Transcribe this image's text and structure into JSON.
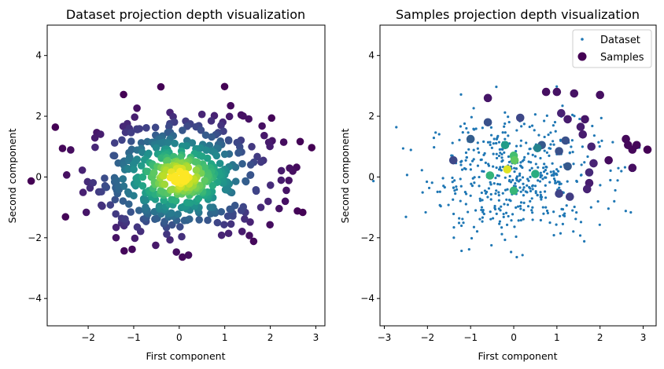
{
  "chart_data": [
    {
      "type": "scatter",
      "title": "Dataset projection depth visualization",
      "xlabel": "First component",
      "ylabel": "Second component",
      "xlim": [
        -2.9,
        3.2
      ],
      "ylim": [
        -4.9,
        5.0
      ],
      "xticks": [
        -2,
        -1,
        0,
        1,
        2,
        3
      ],
      "yticks": [
        -4,
        -2,
        0,
        2,
        4
      ],
      "colormap": "viridis",
      "point_count": 500,
      "distribution": "bivariate standard normal",
      "color_encoding": "projection depth (purple = low, yellow = high)",
      "grid": false,
      "legend": null
    },
    {
      "type": "scatter",
      "title": "Samples projection depth visualization",
      "xlabel": "First component",
      "ylabel": "Second component",
      "xlim": [
        -3.1,
        3.3
      ],
      "ylim": [
        -4.9,
        5.0
      ],
      "xticks": [
        -3,
        -2,
        -1,
        0,
        1,
        2,
        3
      ],
      "yticks": [
        -4,
        -2,
        0,
        2,
        4
      ],
      "grid": false,
      "legend": "top-right",
      "series": [
        {
          "name": "Dataset",
          "marker": "small dot",
          "color": "#1f77b4",
          "point_count": 500
        },
        {
          "name": "Samples",
          "marker": "large circle",
          "colormap": "viridis",
          "points": [
            {
              "x": -0.15,
              "y": 0.25,
              "depth": 0.95
            },
            {
              "x": 0.02,
              "y": 0.55,
              "depth": 0.75
            },
            {
              "x": 0.0,
              "y": 0.7,
              "depth": 0.7
            },
            {
              "x": -0.55,
              "y": 0.05,
              "depth": 0.65
            },
            {
              "x": 0.5,
              "y": 0.1,
              "depth": 0.62
            },
            {
              "x": 0.0,
              "y": -0.45,
              "depth": 0.66
            },
            {
              "x": -0.2,
              "y": 1.05,
              "depth": 0.55
            },
            {
              "x": 0.55,
              "y": 0.95,
              "depth": 0.45
            },
            {
              "x": -1.0,
              "y": 1.25,
              "depth": 0.3
            },
            {
              "x": -1.4,
              "y": 0.55,
              "depth": 0.22
            },
            {
              "x": -0.6,
              "y": 1.8,
              "depth": 0.25
            },
            {
              "x": 0.15,
              "y": 1.95,
              "depth": 0.22
            },
            {
              "x": 0.65,
              "y": 1.05,
              "depth": 0.28
            },
            {
              "x": 1.2,
              "y": 1.2,
              "depth": 0.25
            },
            {
              "x": 1.05,
              "y": 0.85,
              "depth": 0.25
            },
            {
              "x": 1.25,
              "y": 0.35,
              "depth": 0.28
            },
            {
              "x": 1.05,
              "y": -0.55,
              "depth": 0.2
            },
            {
              "x": 1.3,
              "y": -0.65,
              "depth": 0.18
            },
            {
              "x": 1.75,
              "y": 0.15,
              "depth": 0.12
            },
            {
              "x": 1.7,
              "y": -0.4,
              "depth": 0.1
            },
            {
              "x": 1.8,
              "y": 1.0,
              "depth": 0.1
            },
            {
              "x": 1.85,
              "y": 0.45,
              "depth": 0.1
            },
            {
              "x": 1.6,
              "y": 1.4,
              "depth": 0.08
            },
            {
              "x": 1.1,
              "y": 2.1,
              "depth": 0.1
            },
            {
              "x": 1.25,
              "y": 1.9,
              "depth": 0.08
            },
            {
              "x": 1.55,
              "y": 1.65,
              "depth": 0.08
            },
            {
              "x": 1.65,
              "y": 1.9,
              "depth": 0.06
            },
            {
              "x": 2.0,
              "y": 2.7,
              "depth": 0.04
            },
            {
              "x": 1.4,
              "y": 2.75,
              "depth": 0.05
            },
            {
              "x": 1.0,
              "y": 2.8,
              "depth": 0.05
            },
            {
              "x": 0.75,
              "y": 2.8,
              "depth": 0.04
            },
            {
              "x": -0.6,
              "y": 2.6,
              "depth": 0.06
            },
            {
              "x": 2.2,
              "y": 0.55,
              "depth": 0.03
            },
            {
              "x": 1.75,
              "y": -0.2,
              "depth": 0.08
            },
            {
              "x": 2.6,
              "y": 1.25,
              "depth": 0.02
            },
            {
              "x": 2.65,
              "y": 1.05,
              "depth": 0.02
            },
            {
              "x": 2.75,
              "y": 0.9,
              "depth": 0.02
            },
            {
              "x": 2.85,
              "y": 1.05,
              "depth": 0.02
            },
            {
              "x": 3.1,
              "y": 0.9,
              "depth": 0.0
            },
            {
              "x": 2.75,
              "y": 0.3,
              "depth": 0.04
            }
          ]
        }
      ]
    }
  ]
}
